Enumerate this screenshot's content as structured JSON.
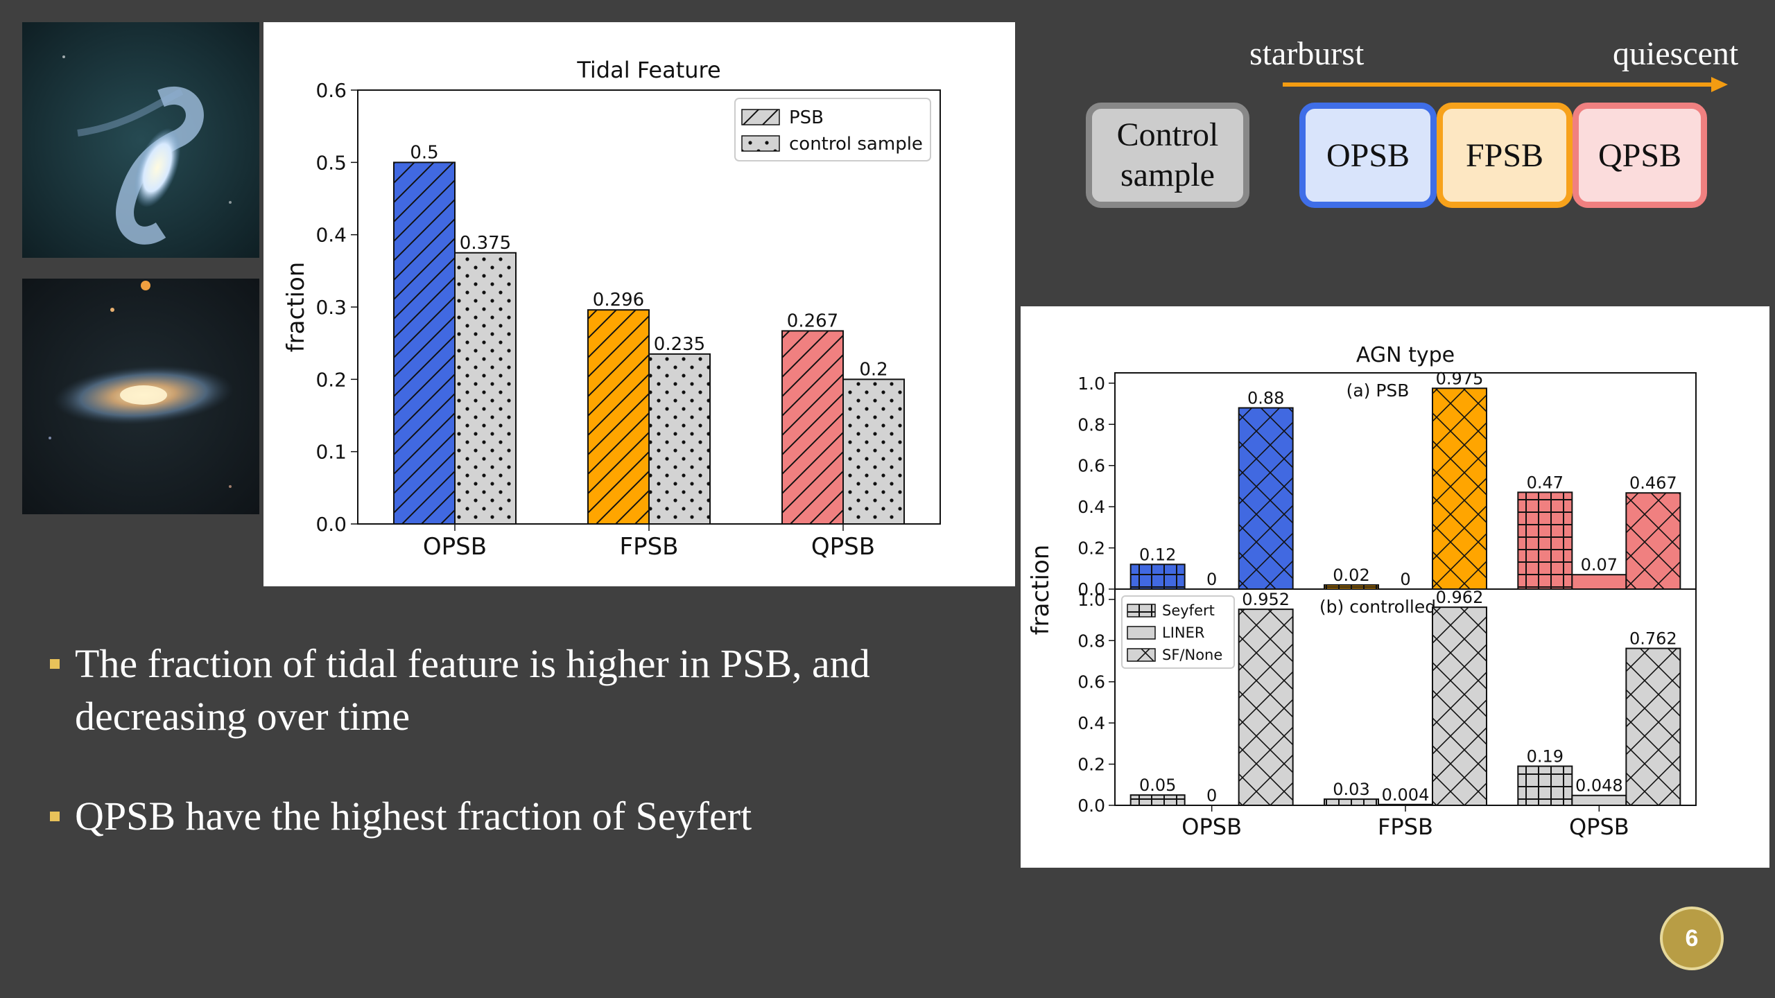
{
  "chart_data": [
    {
      "type": "bar",
      "title": "Tidal Feature",
      "xlabel": "",
      "ylabel": "fraction",
      "ylim": [
        0,
        0.6
      ],
      "yticks": [
        "0.0",
        "0.1",
        "0.2",
        "0.3",
        "0.4",
        "0.5",
        "0.6"
      ],
      "categories": [
        "OPSB",
        "FPSB",
        "QPSB"
      ],
      "series": [
        {
          "name": "PSB",
          "values": [
            0.5,
            0.296,
            0.267
          ],
          "labels": [
            "0.5",
            "0.296",
            "0.267"
          ],
          "colors": [
            "#4169e1",
            "#ffa500",
            "#f08080"
          ],
          "hatch": "diagonal"
        },
        {
          "name": "control sample",
          "values": [
            0.375,
            0.235,
            0.2
          ],
          "labels": [
            "0.375",
            "0.235",
            "0.2"
          ],
          "colors": [
            "#d3d3d3",
            "#d3d3d3",
            "#d3d3d3"
          ],
          "hatch": "dots"
        }
      ],
      "legend_position": "top-right",
      "grid": false
    },
    {
      "type": "bar",
      "title": "AGN type",
      "xlabel": "",
      "ylabel": "fraction",
      "ylim": [
        0,
        1.0
      ],
      "yticks": [
        "0.0",
        "0.2",
        "0.4",
        "0.6",
        "0.8",
        "1.0"
      ],
      "categories": [
        "OPSB",
        "FPSB",
        "QPSB"
      ],
      "legend": [
        "Seyfert",
        "LINER",
        "SF/None"
      ],
      "legend_position": "top-left (lower panel)",
      "panels": [
        {
          "label": "(a) PSB",
          "series": [
            {
              "name": "Seyfert",
              "values": [
                0.12,
                0.02,
                0.47
              ],
              "labels": [
                "0.12",
                "0.02",
                "0.47"
              ],
              "hatch": "grid"
            },
            {
              "name": "LINER",
              "values": [
                0,
                0,
                0.07
              ],
              "labels": [
                "0",
                "0",
                "0.07"
              ],
              "hatch": "none"
            },
            {
              "name": "SF/None",
              "values": [
                0.88,
                0.975,
                0.467
              ],
              "labels": [
                "0.88",
                "0.975",
                "0.467"
              ],
              "hatch": "cross"
            }
          ],
          "colors": [
            "#4169e1",
            "#ffa500",
            "#f08080"
          ]
        },
        {
          "label": "(b) controlled",
          "series": [
            {
              "name": "Seyfert",
              "values": [
                0.05,
                0.03,
                0.19
              ],
              "labels": [
                "0.05",
                "0.03",
                "0.19"
              ],
              "hatch": "grid"
            },
            {
              "name": "LINER",
              "values": [
                0,
                0.004,
                0.048
              ],
              "labels": [
                "0",
                "0.004",
                "0.048"
              ],
              "hatch": "none"
            },
            {
              "name": "SF/None",
              "values": [
                0.952,
                0.962,
                0.762
              ],
              "labels": [
                "0.952",
                "0.962",
                "0.762"
              ],
              "hatch": "cross"
            }
          ],
          "colors": [
            "#d3d3d3",
            "#d3d3d3",
            "#d3d3d3"
          ]
        }
      ],
      "grid": false
    }
  ],
  "timeline": {
    "start_label": "starburst",
    "end_label": "quiescent",
    "arrow_color": "#f39c12"
  },
  "boxes": {
    "control": "Control\nsample",
    "opsb": "OPSB",
    "fpsb": "FPSB",
    "qpsb": "QPSB"
  },
  "bullets": [
    "The fraction of tidal feature is higher in PSB, and decreasing over time",
    "QPSB have the highest fraction of Seyfert"
  ],
  "page_number": "6"
}
